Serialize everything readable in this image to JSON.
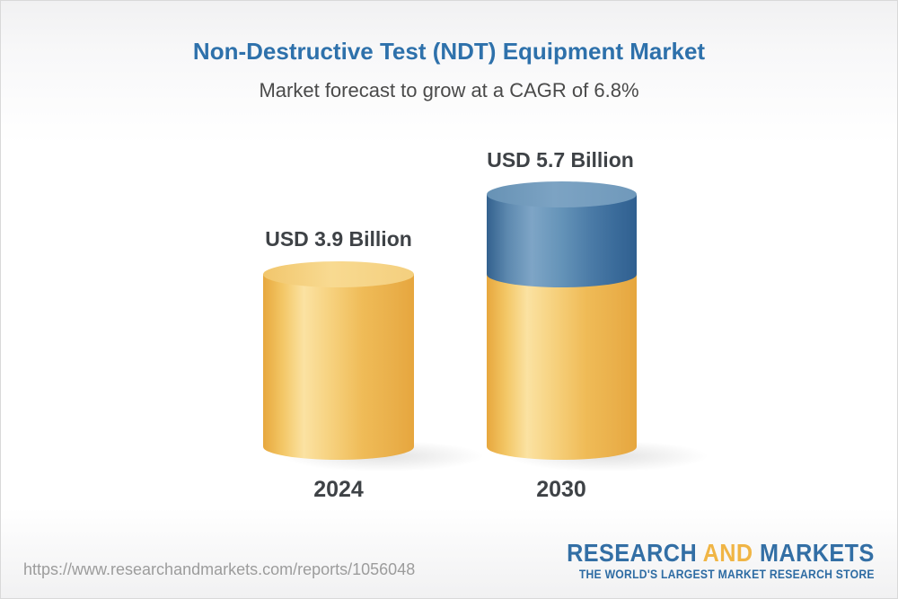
{
  "header": {
    "title": "Non-Destructive Test (NDT) Equipment Market",
    "subtitle": "Market forecast to grow at a CAGR of 6.8%"
  },
  "chart_data": {
    "type": "bar",
    "variant": "3d-cylinder-columns",
    "categories": [
      "2024",
      "2030"
    ],
    "values": [
      3.9,
      5.7
    ],
    "value_labels": [
      "USD 3.9 Billion",
      "USD 5.7 Billion"
    ],
    "unit": "USD Billion",
    "cagr_percent": 6.8,
    "legend": "none",
    "axes": "none",
    "colors": {
      "base_segment": "#F0BC55",
      "growth_segment": "#4F7EA9",
      "label_text": "#3E4246",
      "title_text": "#2E71AB"
    }
  },
  "footer": {
    "url": "https://www.researchandmarkets.com/reports/1056048",
    "logo": {
      "part1": "RESEARCH",
      "part2": "AND",
      "part3": "MARKETS",
      "tagline": "THE WORLD'S LARGEST MARKET RESEARCH STORE",
      "blue": "#336FA5",
      "yellow": "#F0B545"
    }
  }
}
